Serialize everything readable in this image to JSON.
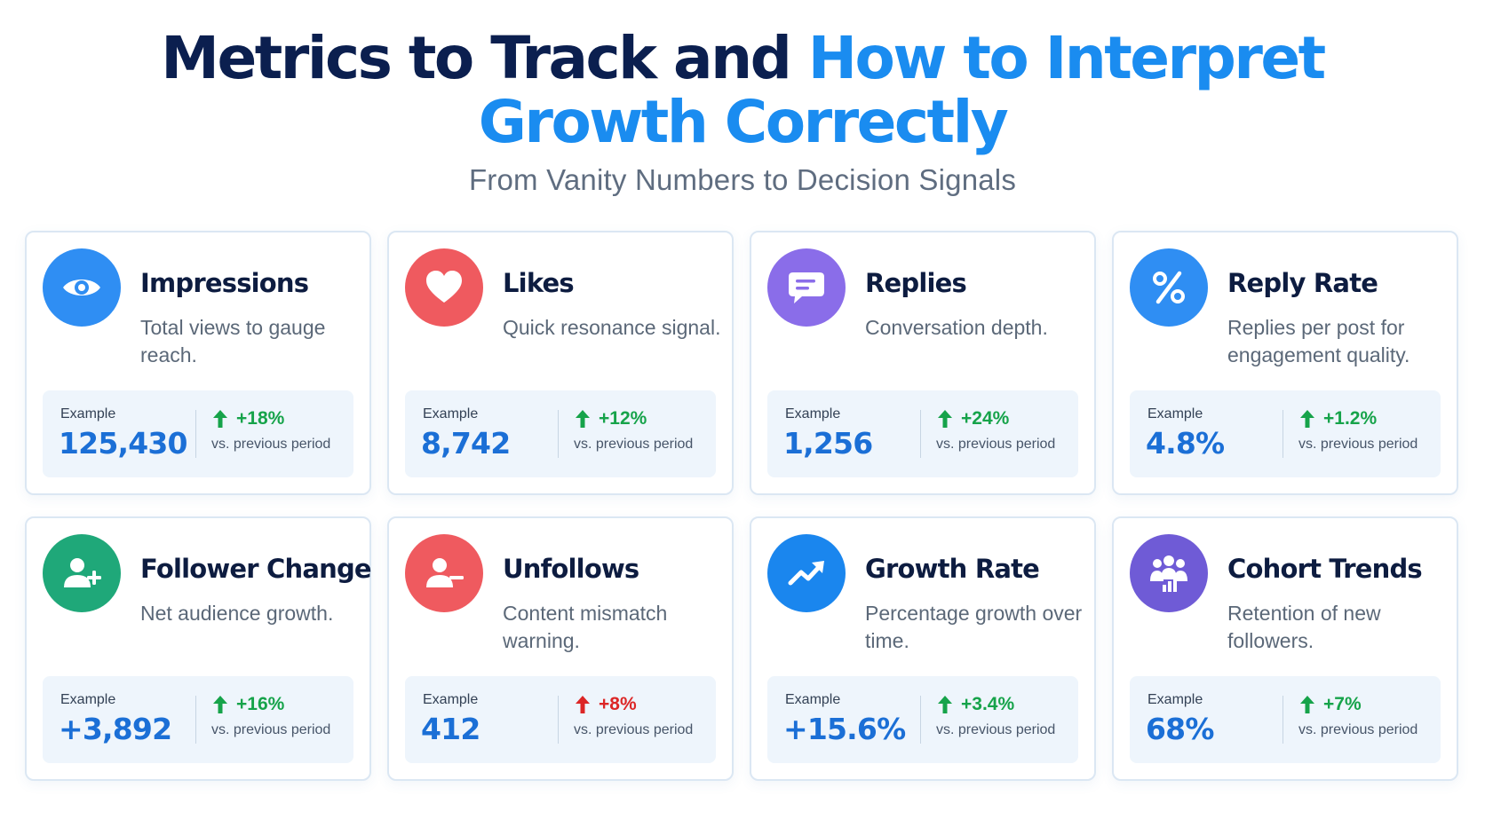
{
  "header": {
    "title_part1": "Metrics to Track and ",
    "title_part2": "How to Interpret",
    "title_line2": "Growth Correctly",
    "subtitle": "From Vanity Numbers to Decision Signals"
  },
  "example_label": "Example",
  "comparison_note": "vs. previous period",
  "colors": {
    "navy": "#0b1f4f",
    "accent_blue": "#1a8cf0",
    "positive": "#16a34a",
    "negative": "#dc2626"
  },
  "cards": [
    {
      "title": "Impressions",
      "description": "Total views to gauge reach.",
      "value": "125,430",
      "change": "+18%",
      "icon": "eye-icon",
      "icon_color": "#2f8ef3",
      "trend": "up-positive"
    },
    {
      "title": "Likes",
      "description": "Quick resonance signal.",
      "value": "8,742",
      "change": "+12%",
      "icon": "heart-icon",
      "icon_color": "#ef5a5f",
      "trend": "up-positive"
    },
    {
      "title": "Replies",
      "description": "Conversation depth.",
      "value": "1,256",
      "change": "+24%",
      "icon": "chat-bubble-icon",
      "icon_color": "#8a6de9",
      "trend": "up-positive"
    },
    {
      "title": "Reply Rate",
      "description": "Replies per post for engagement quality.",
      "value": "4.8%",
      "change": "+1.2%",
      "icon": "percent-icon",
      "icon_color": "#2f8ef3",
      "trend": "up-positive"
    },
    {
      "title": "Follower Change",
      "description": "Net audience growth.",
      "value": "+3,892",
      "change": "+16%",
      "icon": "user-add-icon",
      "icon_color": "#1fa879",
      "trend": "up-positive"
    },
    {
      "title": "Unfollows",
      "description": "Content mismatch warning.",
      "value": "412",
      "change": "+8%",
      "icon": "user-remove-icon",
      "icon_color": "#ef5a5f",
      "trend": "up-negative"
    },
    {
      "title": "Growth Rate",
      "description": "Percentage growth over time.",
      "value": "+15.6%",
      "change": "+3.4%",
      "icon": "trend-up-icon",
      "icon_color": "#1a86ee",
      "trend": "up-positive"
    },
    {
      "title": "Cohort Trends",
      "description": "Retention of new followers.",
      "value": "68%",
      "change": "+7%",
      "icon": "cohort-chart-icon",
      "icon_color": "#6f5bd6",
      "trend": "up-positive"
    }
  ]
}
